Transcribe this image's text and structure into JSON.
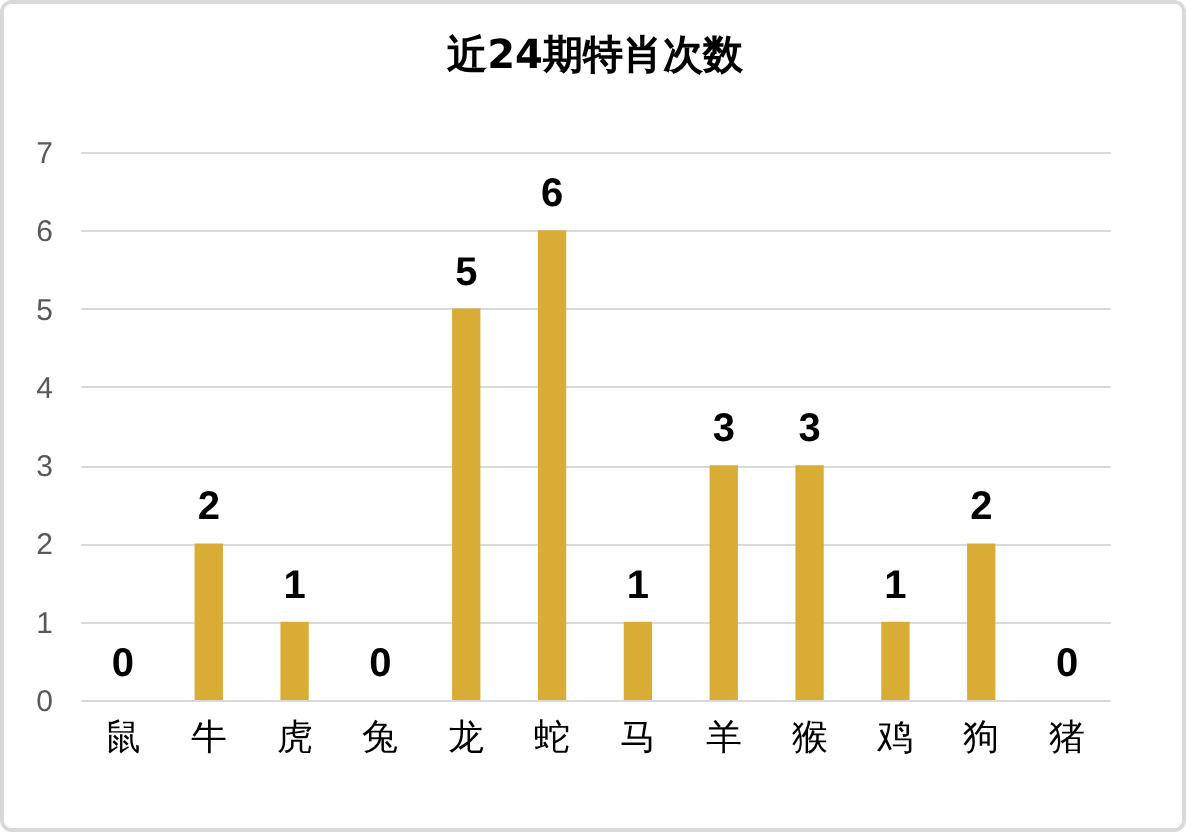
{
  "chart_data": {
    "type": "bar",
    "title": "近24期特肖次数",
    "categories": [
      "鼠",
      "牛",
      "虎",
      "兔",
      "龙",
      "蛇",
      "马",
      "羊",
      "猴",
      "鸡",
      "狗",
      "猪"
    ],
    "values": [
      0,
      2,
      1,
      0,
      5,
      6,
      1,
      3,
      3,
      1,
      2,
      0
    ],
    "color": "#d9ac35",
    "ylim": [
      0,
      7
    ],
    "yticks": [
      0,
      1,
      2,
      3,
      4,
      5,
      6,
      7
    ],
    "grid": "y",
    "data_labels": true
  }
}
